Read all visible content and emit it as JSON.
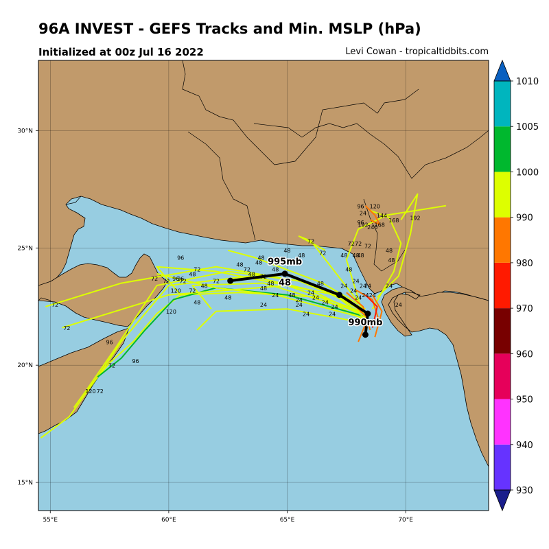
{
  "header": {
    "title": "96A INVEST - GEFS Tracks and Min. MSLP (hPa)",
    "subtitle": "Initialized at 00z Jul 16 2022",
    "credit": "Levi Cowan - tropicaltidbits.com"
  },
  "map": {
    "lon_range": [
      54.5,
      73.5
    ],
    "lat_range": [
      13.8,
      33.0
    ],
    "lon_ticks": [
      "55°E",
      "60°E",
      "65°E",
      "70°E"
    ],
    "lat_ticks": [
      "15°N",
      "20°N",
      "25°N",
      "30°N"
    ],
    "colors": {
      "land": "#c19a6b",
      "ocean": "#97cde1",
      "mean_track": "#000000"
    }
  },
  "colorbar": {
    "ticks": [
      "930",
      "940",
      "950",
      "960",
      "970",
      "980",
      "990",
      "1000",
      "1005",
      "1010"
    ],
    "bins": [
      {
        "from": 920,
        "to": 930,
        "color": "#1a1e8c"
      },
      {
        "from": 930,
        "to": 940,
        "color": "#6633ff"
      },
      {
        "from": 940,
        "to": 950,
        "color": "#ff33ff"
      },
      {
        "from": 950,
        "to": 960,
        "color": "#e6005a"
      },
      {
        "from": 960,
        "to": 970,
        "color": "#780000"
      },
      {
        "from": 970,
        "to": 980,
        "color": "#ff1a00"
      },
      {
        "from": 980,
        "to": 990,
        "color": "#ff7700"
      },
      {
        "from": 990,
        "to": 1000,
        "color": "#ddff00"
      },
      {
        "from": 1000,
        "to": 1005,
        "color": "#00b82e"
      },
      {
        "from": 1005,
        "to": 1010,
        "color": "#00b5be"
      },
      {
        "from": 1010,
        "to": 1020,
        "color": "#0a60c0"
      }
    ]
  },
  "mean_track": {
    "points": [
      [
        68.3,
        21.3
      ],
      [
        68.4,
        22.2
      ],
      [
        67.2,
        23.0
      ],
      [
        64.9,
        23.9
      ],
      [
        62.6,
        23.6
      ]
    ],
    "labels": [
      {
        "text": "990mb",
        "lon": 68.3,
        "lat": 21.7
      },
      {
        "text": "995mb",
        "lon": 64.9,
        "lat": 24.3
      },
      {
        "text": "48",
        "lon": 64.9,
        "lat": 23.4
      }
    ]
  },
  "ensemble_tracks": [
    {
      "color": "#ddff00",
      "points": [
        [
          68.4,
          22.0
        ],
        [
          66.0,
          23.2
        ],
        [
          63.5,
          23.8
        ],
        [
          60.0,
          23.4
        ],
        [
          58.0,
          21.0
        ],
        [
          57.0,
          19.5
        ],
        [
          55.8,
          17.8
        ],
        [
          54.6,
          16.9
        ]
      ]
    },
    {
      "color": "#ddff00",
      "points": [
        [
          68.3,
          22.4
        ],
        [
          65.5,
          23.6
        ],
        [
          62.5,
          24.0
        ],
        [
          59.5,
          23.4
        ],
        [
          57.8,
          20.8
        ],
        [
          56.5,
          18.9
        ],
        [
          56.0,
          18.2
        ]
      ]
    },
    {
      "color": "#ddff00",
      "points": [
        [
          68.5,
          21.8
        ],
        [
          66.4,
          22.9
        ],
        [
          63.0,
          23.1
        ],
        [
          60.5,
          23.0
        ],
        [
          59.5,
          22.2
        ],
        [
          58.5,
          21.0
        ],
        [
          57.5,
          20.1
        ],
        [
          56.6,
          19.0
        ]
      ]
    },
    {
      "color": "#00b82e",
      "points": [
        [
          68.2,
          22.1
        ],
        [
          65.0,
          23.0
        ],
        [
          62.0,
          23.3
        ],
        [
          60.2,
          22.8
        ],
        [
          59.0,
          21.5
        ],
        [
          58.0,
          20.3
        ],
        [
          57.0,
          19.5
        ]
      ]
    },
    {
      "color": "#ddff00",
      "points": [
        [
          68.2,
          22.3
        ],
        [
          66.0,
          23.5
        ],
        [
          62.0,
          24.2
        ],
        [
          58.0,
          23.5
        ],
        [
          54.8,
          22.5
        ]
      ]
    },
    {
      "color": "#ddff00",
      "points": [
        [
          68.4,
          22.2
        ],
        [
          65.0,
          23.4
        ],
        [
          60.0,
          23.0
        ],
        [
          55.5,
          21.6
        ]
      ]
    },
    {
      "color": "#ddff00",
      "points": [
        [
          68.0,
          22.6
        ],
        [
          66.5,
          23.5
        ],
        [
          63.6,
          24.6
        ],
        [
          62.5,
          24.9
        ]
      ]
    },
    {
      "color": "#ddff00",
      "points": [
        [
          68.3,
          22.0
        ],
        [
          67.0,
          23.0
        ],
        [
          62.0,
          24.0
        ],
        [
          59.5,
          24.2
        ],
        [
          60.5,
          23.0
        ]
      ]
    },
    {
      "color": "#ddff00",
      "points": [
        [
          68.6,
          22.4
        ],
        [
          69.5,
          24.0
        ],
        [
          69.8,
          25.2
        ],
        [
          69.3,
          26.3
        ],
        [
          68.5,
          26.6
        ]
      ]
    },
    {
      "color": "#ddff00",
      "points": [
        [
          68.1,
          22.5
        ],
        [
          67.5,
          24.5
        ],
        [
          68.0,
          25.8
        ],
        [
          69.2,
          26.4
        ],
        [
          71.7,
          26.8
        ]
      ]
    },
    {
      "color": "#ddff00",
      "points": [
        [
          68.0,
          22.7
        ],
        [
          67.0,
          24.0
        ],
        [
          66.0,
          25.3
        ],
        [
          65.5,
          25.5
        ],
        [
          66.6,
          24.9
        ]
      ]
    },
    {
      "color": "#ddff00",
      "points": [
        [
          68.8,
          22.9
        ],
        [
          69.7,
          23.8
        ],
        [
          70.2,
          25.6
        ],
        [
          70.5,
          27.3
        ],
        [
          69.8,
          26.2
        ]
      ]
    },
    {
      "color": "#ddff00",
      "points": [
        [
          68.3,
          22.2
        ],
        [
          64.0,
          23.5
        ],
        [
          61.0,
          23.4
        ],
        [
          61.8,
          22.4
        ]
      ]
    },
    {
      "color": "#ddff00",
      "points": [
        [
          68.3,
          21.8
        ],
        [
          65.0,
          22.4
        ],
        [
          62.0,
          22.3
        ],
        [
          61.2,
          21.5
        ]
      ]
    },
    {
      "color": "#ddff00",
      "points": [
        [
          68.3,
          22.0
        ],
        [
          64.5,
          23.0
        ],
        [
          62.0,
          23.3
        ],
        [
          59.5,
          23.9
        ]
      ]
    },
    {
      "color": "#ff7700",
      "points": [
        [
          68.5,
          21.5
        ],
        [
          68.2,
          22.5
        ],
        [
          67.5,
          23.1
        ]
      ]
    },
    {
      "color": "#ff7700",
      "points": [
        [
          68.9,
          21.8
        ],
        [
          68.6,
          22.8
        ],
        [
          67.9,
          23.2
        ]
      ]
    },
    {
      "color": "#ff7700",
      "points": [
        [
          68.0,
          21.0
        ],
        [
          68.4,
          22.0
        ],
        [
          67.6,
          22.8
        ]
      ]
    },
    {
      "color": "#ff7700",
      "points": [
        [
          68.7,
          21.2
        ],
        [
          69.0,
          22.3
        ],
        [
          68.6,
          23.0
        ]
      ]
    },
    {
      "color": "#ff1a00",
      "points": [
        [
          68.6,
          21.6
        ],
        [
          68.8,
          22.5
        ],
        [
          68.3,
          23.0
        ]
      ]
    },
    {
      "color": "#ff7700",
      "points": [
        [
          68.3,
          26.8
        ],
        [
          68.7,
          26.4
        ],
        [
          68.9,
          26.0
        ],
        [
          68.5,
          26.2
        ]
      ]
    }
  ],
  "hour_labels": [
    {
      "text": "72",
      "lon": 55.2,
      "lat": 22.5
    },
    {
      "text": "72",
      "lon": 55.7,
      "lat": 21.5
    },
    {
      "text": "96",
      "lon": 57.5,
      "lat": 20.9
    },
    {
      "text": "72",
      "lon": 57.6,
      "lat": 19.9
    },
    {
      "text": "96",
      "lon": 58.6,
      "lat": 20.1
    },
    {
      "text": "120",
      "lon": 56.7,
      "lat": 18.8
    },
    {
      "text": "72",
      "lon": 57.1,
      "lat": 18.8
    },
    {
      "text": "120",
      "lon": 60.1,
      "lat": 22.2
    },
    {
      "text": "72",
      "lon": 59.4,
      "lat": 23.6
    },
    {
      "text": "72",
      "lon": 59.9,
      "lat": 23.5
    },
    {
      "text": "96",
      "lon": 60.3,
      "lat": 23.6
    },
    {
      "text": "96",
      "lon": 60.5,
      "lat": 23.6
    },
    {
      "text": "72",
      "lon": 60.6,
      "lat": 23.5
    },
    {
      "text": "120",
      "lon": 60.3,
      "lat": 23.1
    },
    {
      "text": "72",
      "lon": 61.0,
      "lat": 23.1
    },
    {
      "text": "48",
      "lon": 61.0,
      "lat": 23.8
    },
    {
      "text": "72",
      "lon": 61.2,
      "lat": 24.0
    },
    {
      "text": "96",
      "lon": 60.5,
      "lat": 24.5
    },
    {
      "text": "48",
      "lon": 61.5,
      "lat": 23.3
    },
    {
      "text": "48",
      "lon": 61.2,
      "lat": 22.6
    },
    {
      "text": "72",
      "lon": 62.0,
      "lat": 23.5
    },
    {
      "text": "48",
      "lon": 62.5,
      "lat": 22.8
    },
    {
      "text": "48",
      "lon": 63.0,
      "lat": 24.2
    },
    {
      "text": "72",
      "lon": 63.3,
      "lat": 24.0
    },
    {
      "text": "48",
      "lon": 63.5,
      "lat": 23.8
    },
    {
      "text": "72",
      "lon": 64.0,
      "lat": 23.7
    },
    {
      "text": "48",
      "lon": 63.8,
      "lat": 24.3
    },
    {
      "text": "48",
      "lon": 63.9,
      "lat": 24.5
    },
    {
      "text": "48",
      "lon": 64.5,
      "lat": 24.0
    },
    {
      "text": "48",
      "lon": 65.0,
      "lat": 24.8
    },
    {
      "text": "48",
      "lon": 64.0,
      "lat": 23.2
    },
    {
      "text": "48",
      "lon": 64.3,
      "lat": 23.4
    },
    {
      "text": "24",
      "lon": 64.5,
      "lat": 22.9
    },
    {
      "text": "48",
      "lon": 65.2,
      "lat": 22.9
    },
    {
      "text": "24",
      "lon": 65.5,
      "lat": 22.7
    },
    {
      "text": "24",
      "lon": 64.0,
      "lat": 22.5
    },
    {
      "text": "24",
      "lon": 65.5,
      "lat": 22.5
    },
    {
      "text": "24",
      "lon": 65.8,
      "lat": 22.1
    },
    {
      "text": "24",
      "lon": 66.0,
      "lat": 23.0
    },
    {
      "text": "24",
      "lon": 66.2,
      "lat": 22.8
    },
    {
      "text": "48",
      "lon": 66.4,
      "lat": 23.4
    },
    {
      "text": "24",
      "lon": 66.6,
      "lat": 22.6
    },
    {
      "text": "24",
      "lon": 67.0,
      "lat": 22.4
    },
    {
      "text": "24",
      "lon": 66.9,
      "lat": 22.1
    },
    {
      "text": "48",
      "lon": 65.6,
      "lat": 24.6
    },
    {
      "text": "72",
      "lon": 66.0,
      "lat": 25.2
    },
    {
      "text": "72",
      "lon": 66.5,
      "lat": 24.7
    },
    {
      "text": "48",
      "lon": 67.4,
      "lat": 24.6
    },
    {
      "text": "72",
      "lon": 67.7,
      "lat": 25.1
    },
    {
      "text": "72",
      "lon": 68.0,
      "lat": 25.1
    },
    {
      "text": "72",
      "lon": 68.4,
      "lat": 25.0
    },
    {
      "text": "48",
      "lon": 67.9,
      "lat": 24.6
    },
    {
      "text": "48",
      "lon": 68.1,
      "lat": 24.6
    },
    {
      "text": "48",
      "lon": 69.3,
      "lat": 24.8
    },
    {
      "text": "48",
      "lon": 69.4,
      "lat": 24.4
    },
    {
      "text": "48",
      "lon": 67.6,
      "lat": 24.0
    },
    {
      "text": "24",
      "lon": 67.4,
      "lat": 23.3
    },
    {
      "text": "24",
      "lon": 67.8,
      "lat": 23.1
    },
    {
      "text": "24",
      "lon": 67.9,
      "lat": 23.5
    },
    {
      "text": "24",
      "lon": 68.4,
      "lat": 23.3
    },
    {
      "text": "24",
      "lon": 68.6,
      "lat": 22.9
    },
    {
      "text": "24",
      "lon": 69.3,
      "lat": 23.3
    },
    {
      "text": "24",
      "lon": 69.7,
      "lat": 22.5
    },
    {
      "text": "24",
      "lon": 68.0,
      "lat": 22.8
    },
    {
      "text": "24",
      "lon": 68.3,
      "lat": 22.9
    },
    {
      "text": "24",
      "lon": 68.2,
      "lat": 23.3
    },
    {
      "text": "96",
      "lon": 68.1,
      "lat": 26.7
    },
    {
      "text": "120",
      "lon": 68.7,
      "lat": 26.7
    },
    {
      "text": "24",
      "lon": 68.2,
      "lat": 26.4
    },
    {
      "text": "144",
      "lon": 69.0,
      "lat": 26.3
    },
    {
      "text": "168",
      "lon": 69.5,
      "lat": 26.1
    },
    {
      "text": "192",
      "lon": 70.4,
      "lat": 26.2
    },
    {
      "text": "192",
      "lon": 68.2,
      "lat": 25.9
    },
    {
      "text": "240",
      "lon": 68.6,
      "lat": 25.8
    },
    {
      "text": "168",
      "lon": 68.9,
      "lat": 25.9
    },
    {
      "text": "96",
      "lon": 68.1,
      "lat": 26.0
    }
  ]
}
